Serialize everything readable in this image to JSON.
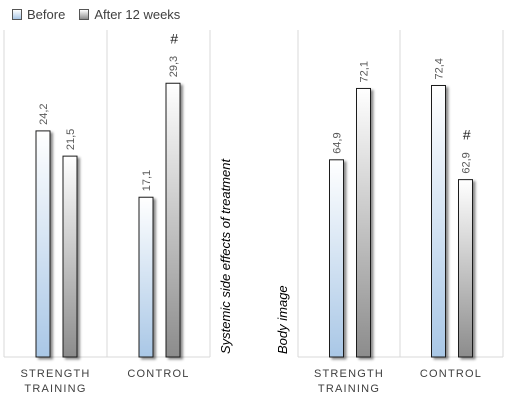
{
  "legend": {
    "series1": "Before",
    "series2": "After 12 weeks"
  },
  "colors": {
    "before_top": "#ffffff",
    "before_bottom": "#a9c7e6",
    "after_top": "#ffffff",
    "after_bottom": "#8c8c8c",
    "bar_outline": "#1a1a1a",
    "grid": "#d9d9d9",
    "text": "#595959"
  },
  "chart_data": [
    {
      "type": "bar",
      "ylabel": "Systemic side effects of treatment",
      "categories": [
        "STRENGTH\nTRAINING",
        "CONTROL"
      ],
      "series": [
        {
          "name": "Before",
          "values": [
            24.2,
            17.1
          ]
        },
        {
          "name": "After 12 weeks",
          "values": [
            21.5,
            29.3
          ]
        }
      ],
      "value_labels": [
        [
          "24,2",
          "17,1"
        ],
        [
          "21,5",
          "29,3"
        ]
      ],
      "annotations": [
        {
          "category": 1,
          "series": 1,
          "text": "#"
        }
      ],
      "ylim": [
        0,
        35
      ],
      "grid": false
    },
    {
      "type": "bar",
      "ylabel": "Body image",
      "categories": [
        "STRENGTH\nTRAINING",
        "CONTROL"
      ],
      "series": [
        {
          "name": "Before",
          "values": [
            64.9,
            72.4
          ]
        },
        {
          "name": "After 12 weeks",
          "values": [
            72.1,
            62.9
          ]
        }
      ],
      "value_labels": [
        [
          "64,9",
          "72,4"
        ],
        [
          "72,1",
          "62,9"
        ]
      ],
      "annotations": [
        {
          "category": 1,
          "series": 1,
          "text": "#"
        }
      ],
      "ylim": [
        45,
        78
      ],
      "grid": false
    }
  ]
}
